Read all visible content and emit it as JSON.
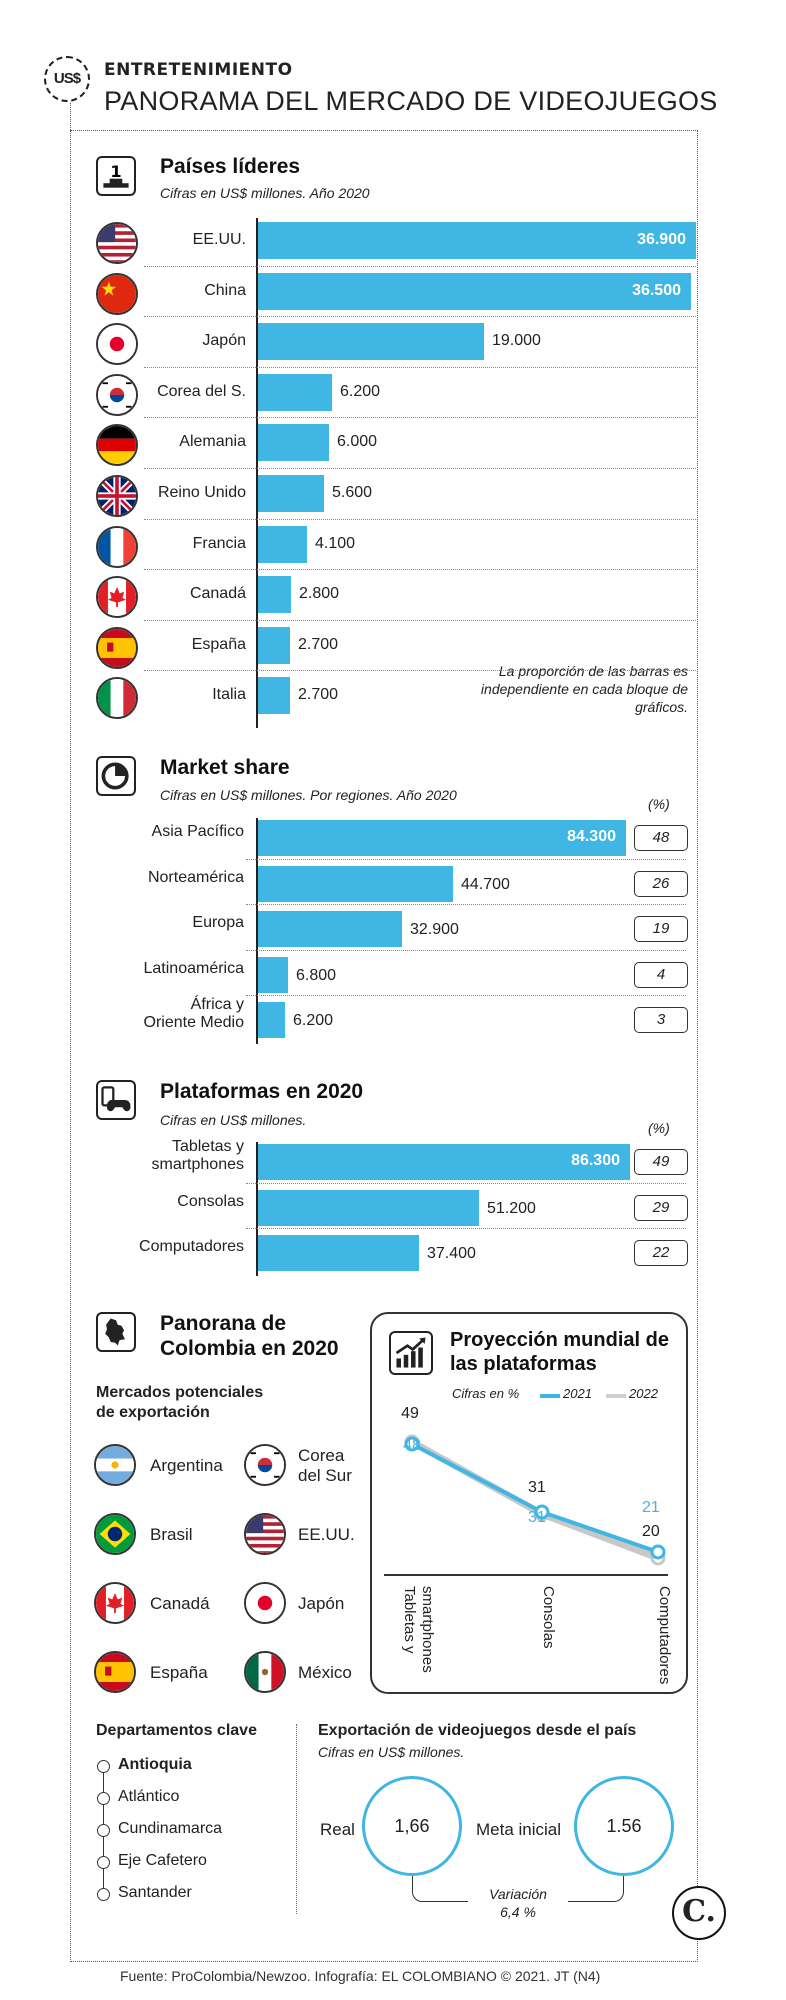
{
  "header": {
    "logo": "US$",
    "kicker": "ENTRETENIMIENTO",
    "title": "PANORAMA DEL MERCADO DE VIDEOJUEGOS"
  },
  "chart_data": [
    {
      "type": "bar",
      "title": "Países líderes",
      "subtitle": "Cifras en US$ millones. Año 2020",
      "categories": [
        "EE.UU.",
        "China",
        "Japón",
        "Corea del S.",
        "Alemania",
        "Reino Unido",
        "Francia",
        "Canadá",
        "España",
        "Italia"
      ],
      "values": [
        36900,
        36500,
        19000,
        6200,
        6000,
        5600,
        4100,
        2800,
        2700,
        2700
      ],
      "value_labels": [
        "36.900",
        "36.500",
        "19.000",
        "6.200",
        "6.000",
        "5.600",
        "4.100",
        "2.800",
        "2.700",
        "2.700"
      ],
      "note": "La proporción de las barras es independiente en cada bloque de gráficos."
    },
    {
      "type": "bar",
      "title": "Market share",
      "subtitle": "Cifras en US$ millones. Por regiones. Año 2020",
      "pct_header": "(%)",
      "categories": [
        "Asia Pacífico",
        "Norteamérica",
        "Europa",
        "Latinoamérica",
        "África y Oriente Medio"
      ],
      "values": [
        84300,
        44700,
        32900,
        6800,
        6200
      ],
      "value_labels": [
        "84.300",
        "44.700",
        "32.900",
        "6.800",
        "6.200"
      ],
      "percent": [
        "48",
        "26",
        "19",
        "4",
        "3"
      ]
    },
    {
      "type": "bar",
      "title": "Plataformas en 2020",
      "subtitle": "Cifras en US$ millones.",
      "pct_header": "(%)",
      "categories": [
        "Tabletas y smartphones",
        "Consolas",
        "Computadores"
      ],
      "values": [
        86300,
        51200,
        37400
      ],
      "value_labels": [
        "86.300",
        "51.200",
        "37.400"
      ],
      "percent": [
        "49",
        "29",
        "22"
      ]
    },
    {
      "type": "line",
      "title": "Proyección mundial de las plataformas",
      "subtitle": "Cifras en %",
      "categories": [
        "Tabletas y smartphones",
        "Consolas",
        "Computadores"
      ],
      "series": [
        {
          "name": "2021",
          "values": [
            48,
            31,
            21
          ],
          "color": "#3fb6e4"
        },
        {
          "name": "2022",
          "values": [
            49,
            31,
            20
          ],
          "color": "#c8c8c8"
        }
      ]
    }
  ],
  "colombia": {
    "title_line1": "Panorana de",
    "title_line2": "Colombia en 2020",
    "markets_title_1": "Mercados potenciales",
    "markets_title_2": "de exportación",
    "markets_left": [
      "Argentina",
      "Brasil",
      "Canadá",
      "España"
    ],
    "markets_right": [
      "Corea",
      "del Sur",
      "EE.UU.",
      "Japón",
      "México"
    ],
    "departments_title": "Departamentos clave",
    "departments": [
      "Antioquia",
      "Atlántico",
      "Cundinamarca",
      "Eje Cafetero",
      "Santander"
    ],
    "export_title": "Exportación de videojuegos desde el país",
    "export_sub": "Cifras en US$ millones.",
    "real_label": "Real",
    "real_value": "1,66",
    "goal_label": "Meta inicial",
    "goal_value": "1.56",
    "variation_label": "Variación",
    "variation_value": "6,4 %"
  },
  "footer": {
    "source": "Fuente: ProColombia/Newzoo. Infografía: EL COLOMBIANO © 2021. JT (N4)",
    "brand": "C."
  }
}
